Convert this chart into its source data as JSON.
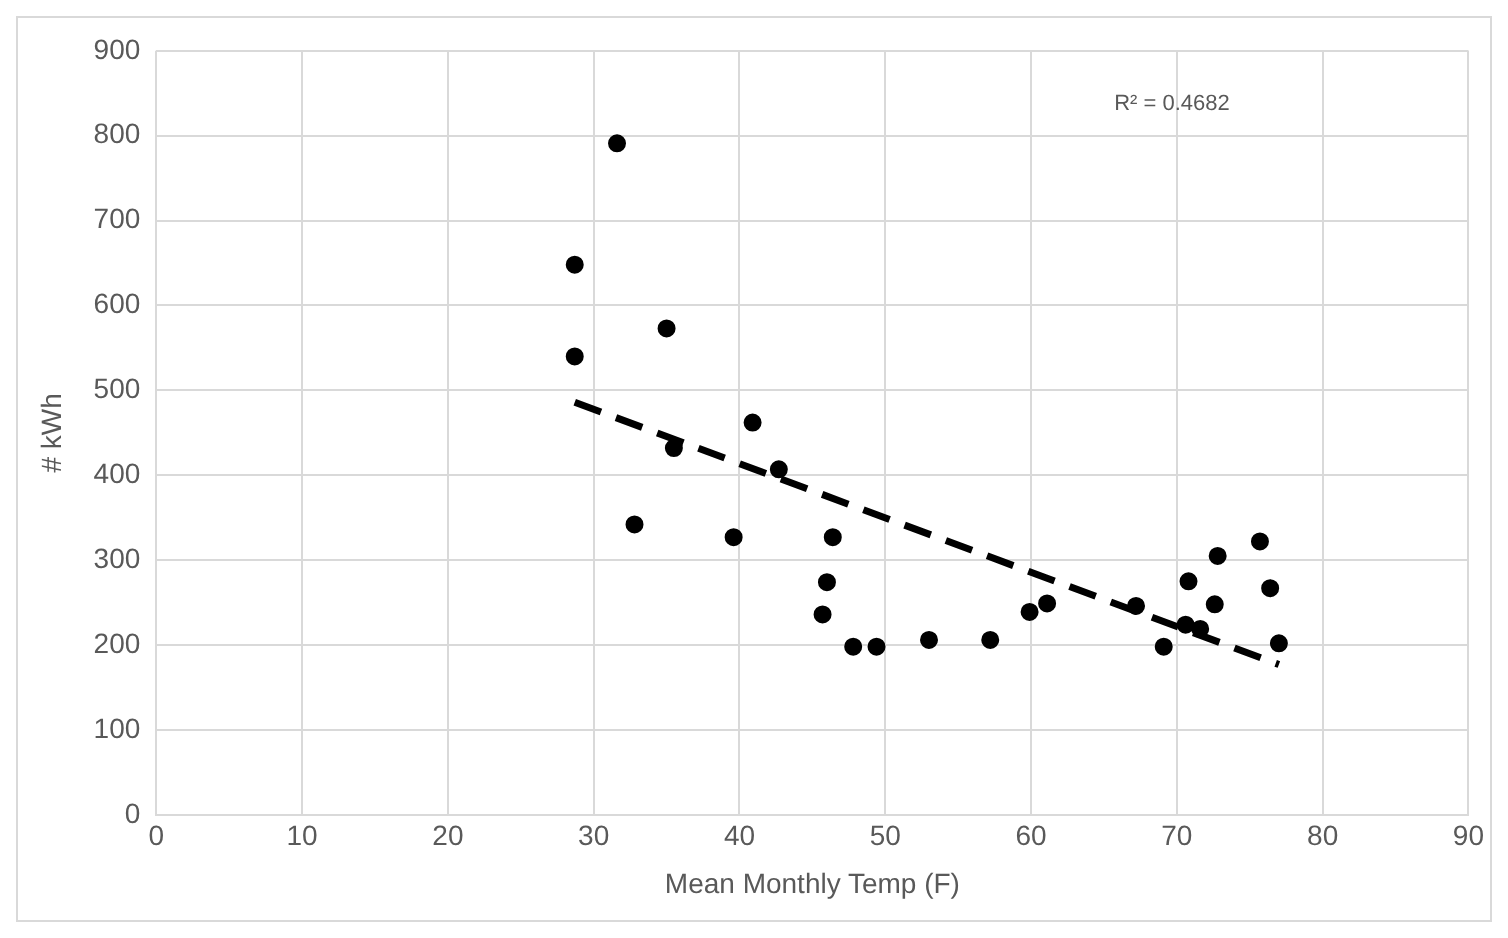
{
  "chart_data": {
    "type": "scatter",
    "xlabel": "Mean Monthly Temp (F)",
    "ylabel": "# kWh",
    "xlim": [
      0,
      90
    ],
    "xticks": [
      0,
      10,
      20,
      30,
      40,
      50,
      60,
      70,
      80,
      90
    ],
    "ylim": [
      0,
      900
    ],
    "yticks": [
      0,
      100,
      200,
      300,
      400,
      500,
      600,
      700,
      800,
      900
    ],
    "grid": true,
    "legend": false,
    "annotations": [
      "R² = 0.4682"
    ],
    "series": [
      {
        "color": "#000000",
        "marker": "circle",
        "x": [
          28.7,
          28.7,
          31.6,
          32.8,
          35.0,
          35.5,
          39.6,
          40.9,
          42.7,
          46.4,
          46.0,
          45.7,
          47.8,
          49.4,
          53.0,
          57.2,
          59.9,
          61.1,
          67.2,
          69.1,
          70.8,
          70.6,
          71.6,
          72.6,
          72.8,
          75.7,
          76.4,
          77.0
        ],
        "values": [
          648,
          540,
          791,
          342,
          573,
          432,
          327,
          462,
          407,
          327,
          274,
          236,
          198,
          198,
          206,
          206,
          239,
          249,
          246,
          198,
          275,
          224,
          219,
          248,
          305,
          322,
          267,
          202
        ]
      },
      {
        "type": "line",
        "color": "#000000",
        "marker": "none",
        "line_style": "dashed",
        "x": [
          28.7,
          77.0
        ],
        "values": [
          486,
          177
        ]
      }
    ]
  }
}
